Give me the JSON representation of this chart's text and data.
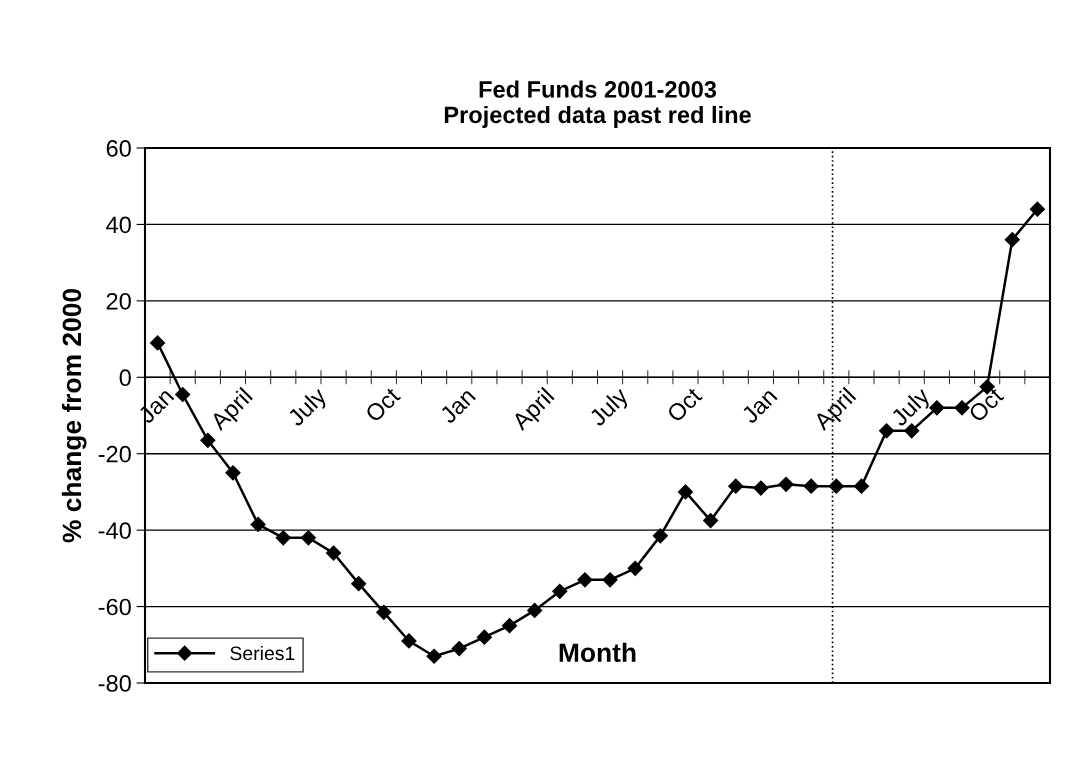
{
  "chart_data": {
    "type": "line",
    "title": "Fed Funds 2001-2003\nProjected data past red line",
    "xlabel": "Month",
    "ylabel": "% change from 2000",
    "categories": [
      "Jan",
      null,
      null,
      "April",
      null,
      null,
      "July",
      null,
      null,
      "Oct",
      null,
      null,
      "Jan",
      null,
      null,
      "April",
      null,
      null,
      "July",
      null,
      null,
      "Oct",
      null,
      null,
      "Jan",
      null,
      null,
      "April",
      null,
      null,
      "July",
      null,
      null,
      "Oct",
      null,
      null
    ],
    "series": [
      {
        "name": "Series1",
        "color": "#000000",
        "values": [
          9,
          -4.5,
          -16.5,
          -25,
          -38.5,
          -42,
          -42,
          -46,
          -54,
          -61.5,
          -69,
          -73,
          -71,
          -68,
          -65,
          -61,
          -56,
          -53,
          -53,
          -50,
          -41.5,
          -30,
          -37.5,
          -28.5,
          -29,
          -28,
          -28.5,
          -28.5,
          -28.5,
          -14,
          -14,
          -8,
          -8,
          -2.5,
          36,
          44
        ]
      }
    ],
    "ylim": [
      -80,
      60
    ],
    "yticks": [
      -80,
      -60,
      -40,
      -20,
      0,
      20,
      40,
      60
    ],
    "grid": "y",
    "legend": "bottom left",
    "marker": "diamond",
    "line_style": "solid"
  }
}
